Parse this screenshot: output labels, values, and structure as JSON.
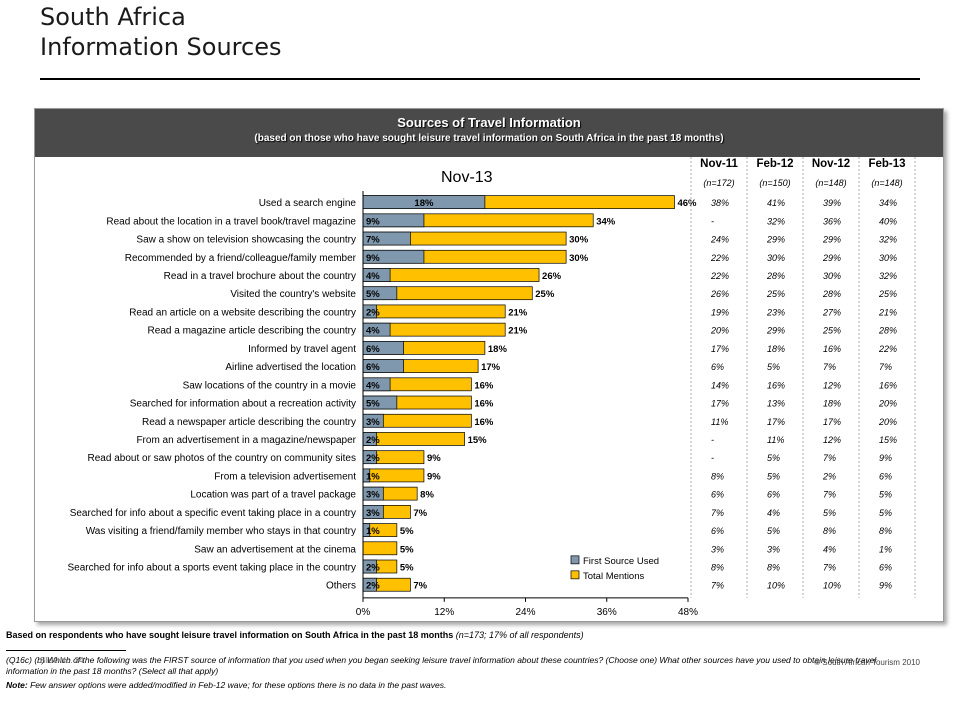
{
  "header": {
    "title_line1": "South Africa",
    "title_line2": "Information Sources"
  },
  "panel": {
    "title": "Sources of Travel Information",
    "subtitle": "(based on those who have sought leisure travel information on South Africa in the past 18 months)"
  },
  "chart_data": {
    "type": "bar",
    "title": "Nov-13",
    "orientation": "horizontal",
    "xlim": [
      0,
      48
    ],
    "x_ticks": [
      "0%",
      "12%",
      "24%",
      "36%",
      "48%"
    ],
    "grid": false,
    "legend_position": "bottom-right",
    "categories": [
      "Used a search engine",
      "Read about the location in a travel book/travel magazine",
      "Saw a show on television showcasing the country",
      "Recommended by a friend/colleague/family member",
      "Read in a travel brochure about the country",
      "Visited the country's website",
      "Read an article on a website describing the country",
      "Read a magazine article describing the country",
      "Informed by travel agent",
      "Airline advertised the location",
      "Saw locations of the country in a movie",
      "Searched for information about a recreation activity",
      "Read a newspaper article describing the country",
      "From an advertisement in a magazine/newspaper",
      "Read about or saw photos of the country on community sites",
      "From a television advertisement",
      "Location was part of a travel package",
      "Searched for info about a specific event taking place in a country",
      "Was visiting a friend/family member who stays in that country",
      "Saw an advertisement at the cinema",
      "Searched for info about a sports event taking place in the country",
      "Others"
    ],
    "series": [
      {
        "name": "First Source Used",
        "color": "#7f98ad",
        "values": [
          18,
          9,
          7,
          9,
          4,
          5,
          2,
          4,
          6,
          6,
          4,
          5,
          3,
          2,
          2,
          1,
          3,
          3,
          1,
          null,
          2,
          2
        ],
        "labels": [
          "18%",
          "9%",
          "7%",
          "9%",
          "4%",
          "5%",
          "2%",
          "4%",
          "6%",
          "6%",
          "4%",
          "5%",
          "3%",
          "2%",
          "2%",
          "1%",
          "3%",
          "3%",
          "1%",
          "",
          "2%",
          "2%"
        ]
      },
      {
        "name": "Total Mentions",
        "color": "#ffc000",
        "values": [
          46,
          34,
          30,
          30,
          26,
          25,
          21,
          21,
          18,
          17,
          16,
          16,
          16,
          15,
          9,
          9,
          8,
          7,
          5,
          5,
          5,
          7
        ],
        "labels": [
          "46%",
          "34%",
          "30%",
          "30%",
          "26%",
          "25%",
          "21%",
          "21%",
          "18%",
          "17%",
          "16%",
          "16%",
          "16%",
          "15%",
          "9%",
          "9%",
          "8%",
          "7%",
          "5%",
          "5%",
          "5%",
          "7%"
        ]
      }
    ],
    "comparison_table": {
      "columns": [
        {
          "wave": "Nov-11",
          "base": "(n=172)"
        },
        {
          "wave": "Feb-12",
          "base": "(n=150)"
        },
        {
          "wave": "Nov-12",
          "base": "(n=148)"
        },
        {
          "wave": "Feb-13",
          "base": "(n=148)"
        }
      ],
      "rows": [
        [
          "38%",
          "41%",
          "39%",
          "34%"
        ],
        [
          "-",
          "32%",
          "36%",
          "40%"
        ],
        [
          "24%",
          "29%",
          "29%",
          "32%"
        ],
        [
          "22%",
          "30%",
          "29%",
          "30%"
        ],
        [
          "22%",
          "28%",
          "30%",
          "32%"
        ],
        [
          "26%",
          "25%",
          "28%",
          "25%"
        ],
        [
          "19%",
          "23%",
          "27%",
          "21%"
        ],
        [
          "20%",
          "29%",
          "25%",
          "28%"
        ],
        [
          "17%",
          "18%",
          "16%",
          "22%"
        ],
        [
          "6%",
          "5%",
          "7%",
          "7%"
        ],
        [
          "14%",
          "16%",
          "12%",
          "16%"
        ],
        [
          "17%",
          "13%",
          "18%",
          "20%"
        ],
        [
          "11%",
          "17%",
          "17%",
          "20%"
        ],
        [
          "-",
          "11%",
          "12%",
          "15%"
        ],
        [
          "-",
          "5%",
          "7%",
          "9%"
        ],
        [
          "8%",
          "5%",
          "2%",
          "6%"
        ],
        [
          "6%",
          "6%",
          "7%",
          "5%"
        ],
        [
          "7%",
          "4%",
          "5%",
          "5%"
        ],
        [
          "6%",
          "5%",
          "8%",
          "8%"
        ],
        [
          "3%",
          "3%",
          "4%",
          "1%"
        ],
        [
          "8%",
          "8%",
          "7%",
          "6%"
        ],
        [
          "7%",
          "10%",
          "10%",
          "9%"
        ]
      ]
    }
  },
  "footer": {
    "base_note": "Based on respondents who have sought leisure travel information on South Africa in the past 18 months",
    "base_detail": "(n=173; 17% of all respondents)",
    "question": "(Q16c) (b) Which of the following was the FIRST source of information that you used when you began seeking leisure travel information about these countries? (Choose one)  What other sources have you used to obtain leisure travel information in the past 18 months? (Select all that apply)",
    "note_label": "Note:",
    "note_text": "Few answer options were added/modified in Feb-12 wave; for these options there is no data in the past waves.",
    "slide_no": "Slide No. 24",
    "copyright": "© South African Tourism 2010"
  }
}
